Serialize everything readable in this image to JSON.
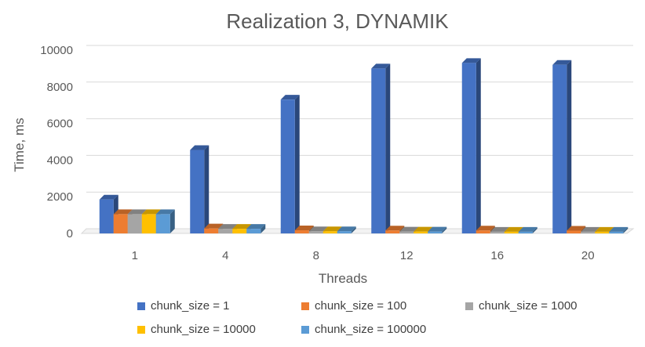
{
  "chart_data": {
    "type": "bar",
    "title": "Realization 3, DYNAMIK",
    "xlabel": "Threads",
    "ylabel": "Time, ms",
    "categories": [
      "1",
      "4",
      "8",
      "12",
      "16",
      "20"
    ],
    "ylim": [
      0,
      10000
    ],
    "yticks": [
      "0",
      "2000",
      "4000",
      "6000",
      "8000",
      "10000"
    ],
    "grid": true,
    "legend_position": "bottom",
    "three_d": true,
    "series": [
      {
        "name": "chunk_size = 1",
        "color": "#4472c4",
        "values": [
          1850,
          4550,
          7300,
          9000,
          9300,
          9200
        ]
      },
      {
        "name": "chunk_size = 100",
        "color": "#ed7d31",
        "values": [
          1050,
          270,
          170,
          160,
          160,
          150
        ]
      },
      {
        "name": "chunk_size = 1000",
        "color": "#a5a5a5",
        "values": [
          1050,
          250,
          120,
          100,
          90,
          90
        ]
      },
      {
        "name": "chunk_size = 10000",
        "color": "#ffc000",
        "values": [
          1050,
          250,
          120,
          100,
          90,
          90
        ]
      },
      {
        "name": "chunk_size = 100000",
        "color": "#5b9bd5",
        "values": [
          1050,
          250,
          120,
          100,
          90,
          90
        ]
      }
    ]
  }
}
